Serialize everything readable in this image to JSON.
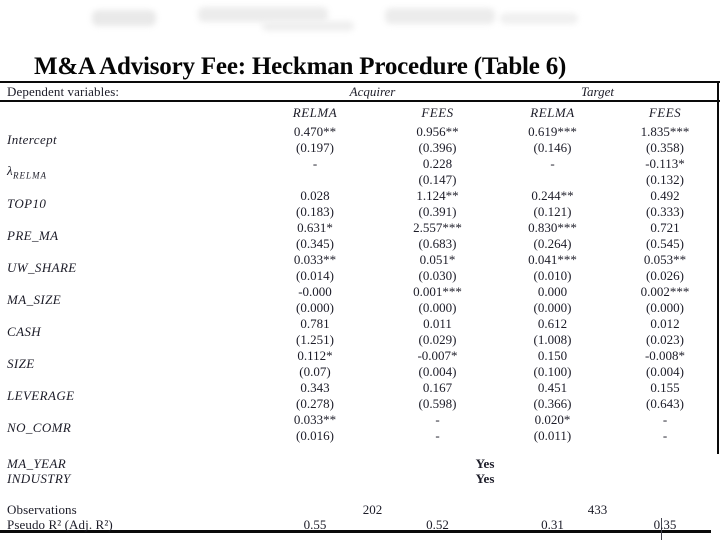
{
  "slide": {
    "title": "M&A Advisory Fee: Heckman Procedure (Table 6)"
  },
  "table": {
    "dependent_label": "Dependent variables:",
    "group_headers": [
      {
        "label": "Acquirer"
      },
      {
        "label": "Target"
      }
    ],
    "column_headers": [
      "RELMA",
      "FEES",
      "RELMA",
      "FEES"
    ],
    "rows": [
      {
        "label": "Intercept",
        "cells": [
          {
            "coef": "0.470**",
            "se": "(0.197)"
          },
          {
            "coef": "0.956**",
            "se": "(0.396)"
          },
          {
            "coef": "0.619***",
            "se": "(0.146)"
          },
          {
            "coef": "1.835***",
            "se": "(0.358)"
          }
        ]
      },
      {
        "label": "λ",
        "label_sub": "RELMA",
        "cells": [
          {
            "coef": "-",
            "se": ""
          },
          {
            "coef": "0.228",
            "se": "(0.147)"
          },
          {
            "coef": "-",
            "se": ""
          },
          {
            "coef": "-0.113*",
            "se": "(0.132)"
          }
        ]
      },
      {
        "label": "TOP10",
        "cells": [
          {
            "coef": "0.028",
            "se": "(0.183)"
          },
          {
            "coef": "1.124**",
            "se": "(0.391)"
          },
          {
            "coef": "0.244**",
            "se": "(0.121)"
          },
          {
            "coef": "0.492",
            "se": "(0.333)"
          }
        ]
      },
      {
        "label": "PRE_MA",
        "cells": [
          {
            "coef": "0.631*",
            "se": "(0.345)"
          },
          {
            "coef": "2.557***",
            "se": "(0.683)"
          },
          {
            "coef": "0.830***",
            "se": "(0.264)"
          },
          {
            "coef": "0.721",
            "se": "(0.545)"
          }
        ]
      },
      {
        "label": "UW_SHARE",
        "cells": [
          {
            "coef": "0.033**",
            "se": "(0.014)"
          },
          {
            "coef": "0.051*",
            "se": "(0.030)"
          },
          {
            "coef": "0.041***",
            "se": "(0.010)"
          },
          {
            "coef": "0.053**",
            "se": "(0.026)"
          }
        ]
      },
      {
        "label": "MA_SIZE",
        "cells": [
          {
            "coef": "-0.000",
            "se": "(0.000)"
          },
          {
            "coef": "0.001***",
            "se": "(0.000)"
          },
          {
            "coef": "0.000",
            "se": "(0.000)"
          },
          {
            "coef": "0.002***",
            "se": "(0.000)"
          }
        ]
      },
      {
        "label": "CASH",
        "cells": [
          {
            "coef": "0.781",
            "se": "(1.251)"
          },
          {
            "coef": "0.011",
            "se": "(0.029)"
          },
          {
            "coef": "0.612",
            "se": "(1.008)"
          },
          {
            "coef": "0.012",
            "se": "(0.023)"
          }
        ]
      },
      {
        "label": "SIZE",
        "cells": [
          {
            "coef": "0.112*",
            "se": "(0.07)"
          },
          {
            "coef": "-0.007*",
            "se": "(0.004)"
          },
          {
            "coef": "0.150",
            "se": "(0.100)"
          },
          {
            "coef": "-0.008*",
            "se": "(0.004)"
          }
        ]
      },
      {
        "label": "LEVERAGE",
        "cells": [
          {
            "coef": "0.343",
            "se": "(0.278)"
          },
          {
            "coef": "0.167",
            "se": "(0.598)"
          },
          {
            "coef": "0.451",
            "se": "(0.366)"
          },
          {
            "coef": "0.155",
            "se": "(0.643)"
          }
        ]
      },
      {
        "label": "NO_COMR",
        "cells": [
          {
            "coef": "0.033**",
            "se": "(0.016)"
          },
          {
            "coef": "-",
            "se": "-"
          },
          {
            "coef": "0.020*",
            "se": "(0.011)"
          },
          {
            "coef": "-",
            "se": "-"
          }
        ]
      }
    ],
    "fixed_effect_rows": [
      {
        "label": "MA_YEAR",
        "value": "Yes"
      },
      {
        "label": "INDUSTRY",
        "value": "Yes"
      }
    ],
    "observations_row": {
      "label": "Observations",
      "acquirer": "202",
      "target": "433"
    },
    "pseudo_r2_row": {
      "label": "Pseudo R² (Adj. R²)",
      "values": [
        "0.55",
        "0.52",
        "0.31",
        "0.35"
      ]
    }
  },
  "colors": {
    "ink": "#1c1c28",
    "title_ink": "#060606",
    "rule": "#0a0a0a",
    "background": "#ffffff"
  }
}
